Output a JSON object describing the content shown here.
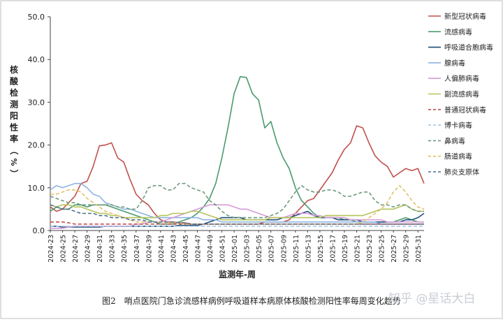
{
  "caption": "图2　哨点医院门急诊流感样病例呼吸道样本病原体核酸检测阳性率每周变化趋势",
  "watermark": "知乎 @星话大白",
  "chart_data": {
    "type": "line",
    "xlabel": "监测年-周",
    "ylabel": "核酸检测阳性率（%）",
    "ylim": [
      0,
      50
    ],
    "yticks": [
      "0.0",
      "10.0",
      "20.0",
      "30.0",
      "40.0",
      "50.0"
    ],
    "ytick_values": [
      0,
      10,
      20,
      30,
      40,
      50
    ],
    "grid": false,
    "legend_position": "right",
    "categories": [
      "2024-23",
      "2024-24",
      "2024-25",
      "2024-26",
      "2024-27",
      "2024-28",
      "2024-29",
      "2024-30",
      "2024-31",
      "2024-32",
      "2024-33",
      "2024-34",
      "2024-35",
      "2024-36",
      "2024-37",
      "2024-38",
      "2024-39",
      "2024-40",
      "2024-41",
      "2024-42",
      "2024-43",
      "2024-44",
      "2024-45",
      "2024-46",
      "2024-47",
      "2024-48",
      "2024-49",
      "2024-50",
      "2024-51",
      "2024-52",
      "2025-01",
      "2025-02",
      "2025-03",
      "2025-04",
      "2025-05",
      "2025-06",
      "2025-07",
      "2025-08",
      "2025-09",
      "2025-10",
      "2025-11",
      "2025-12",
      "2025-13",
      "2025-14",
      "2025-15",
      "2025-16",
      "2025-17",
      "2025-18",
      "2025-19",
      "2025-20",
      "2025-21",
      "2025-22",
      "2025-23",
      "2025-24",
      "2025-25",
      "2025-26",
      "2025-27",
      "2025-28",
      "2025-29",
      "2025-30",
      "2025-31",
      "2025-32"
    ],
    "tick_labels": [
      "2024-23",
      "2024-25",
      "2024-27",
      "2024-29",
      "2024-31",
      "2024-33",
      "2024-35",
      "2024-37",
      "2024-39",
      "2024-41",
      "2024-43",
      "2024-45",
      "2024-47",
      "2024-49",
      "2024-51",
      "2025-01",
      "2025-03",
      "2025-05",
      "2025-07",
      "2025-09",
      "2025-11",
      "2025-13",
      "2025-15",
      "2025-17",
      "2025-19",
      "2025-21",
      "2025-23",
      "2025-25",
      "2025-27",
      "2025-29",
      "2025-31"
    ],
    "series": [
      {
        "name": "新型冠状病毒",
        "color": "#c0504d",
        "dash": false,
        "values": [
          5.5,
          4.5,
          5,
          6.5,
          8,
          11,
          11.5,
          15,
          19.8,
          20,
          20.5,
          17,
          16,
          12,
          8.5,
          7,
          6,
          4,
          2.5,
          2,
          2,
          1.8,
          1.8,
          1.5,
          1.5,
          1.5,
          1.5,
          1.5,
          1.5,
          1.5,
          1.5,
          1.5,
          1.5,
          1.5,
          1.5,
          2,
          2,
          2,
          2,
          2.5,
          4,
          5.5,
          7,
          7.5,
          9.5,
          11.5,
          13.5,
          16.5,
          19,
          20.5,
          24.5,
          24,
          20.5,
          17.5,
          16,
          15,
          12.5,
          13.5,
          14.5,
          14,
          14.5,
          11
        ]
      },
      {
        "name": "流感病毒",
        "color": "#4a9a6e",
        "dash": false,
        "values": [
          4.5,
          5.5,
          5,
          5,
          6,
          6,
          5.5,
          6,
          6,
          6,
          5.5,
          5,
          4.5,
          4,
          3.5,
          3,
          2.5,
          2,
          1.5,
          1.5,
          1.5,
          2,
          2.5,
          3,
          4,
          5.5,
          7.5,
          11,
          17,
          24,
          32,
          36,
          35.8,
          32,
          30.5,
          24,
          25.5,
          20.5,
          17,
          14.5,
          10,
          7,
          5.5,
          4,
          3,
          3,
          3,
          3,
          2.5,
          2.5,
          2,
          2,
          2,
          2,
          2,
          2,
          2,
          2.5,
          3,
          2.5,
          2,
          2
        ]
      },
      {
        "name": "呼吸道合胞病毒",
        "color": "#1f4e79",
        "dash": false,
        "values": [
          1,
          1,
          0.8,
          0.8,
          0.8,
          0.8,
          0.8,
          0.8,
          0.8,
          1,
          1,
          1,
          1,
          1,
          1,
          1,
          1,
          1,
          1,
          1,
          1,
          1.2,
          1.2,
          1.2,
          1.2,
          1.5,
          2,
          2.5,
          3,
          3,
          3,
          3,
          2.5,
          2.5,
          2.5,
          2.5,
          2.5,
          2.5,
          3,
          3,
          3.5,
          4,
          4.5,
          3.5,
          3,
          3,
          3,
          2.5,
          2.5,
          2.5,
          2.5,
          2,
          2,
          2,
          2,
          2,
          2,
          2,
          2.5,
          2.5,
          3,
          4
        ]
      },
      {
        "name": "腺病毒",
        "color": "#8db3e2",
        "dash": false,
        "values": [
          9.5,
          10.5,
          10,
          10.5,
          11,
          11,
          10,
          8.5,
          8,
          6.5,
          6,
          5.5,
          5,
          5,
          4.5,
          4,
          3.5,
          3,
          3,
          3,
          3,
          3,
          3,
          3,
          3,
          2.5,
          2.5,
          2.5,
          2,
          2,
          2,
          2,
          2,
          2,
          2,
          2,
          2,
          2,
          2,
          2,
          2,
          2,
          2,
          2,
          2,
          2,
          2,
          2,
          2,
          2,
          2,
          2,
          2,
          2,
          1.5,
          1.5,
          1.5,
          1.5,
          1.5,
          1.5,
          1.5,
          1.5
        ]
      },
      {
        "name": "人偏肺病毒",
        "color": "#d79ad8",
        "dash": false,
        "values": [
          0.5,
          0.5,
          0.5,
          0.8,
          1,
          1,
          1,
          1,
          1,
          1,
          1,
          1,
          1,
          1,
          1.5,
          1.5,
          2,
          2,
          2,
          2.5,
          3,
          3.5,
          4,
          4.5,
          5,
          5.5,
          6,
          6,
          6,
          6,
          5.5,
          5,
          5,
          4.5,
          4,
          3.5,
          3,
          3,
          3,
          3.5,
          4,
          4,
          4,
          3.5,
          3.5,
          3,
          3,
          3,
          3,
          2.5,
          2.5,
          2.5,
          2.5,
          2.5,
          2.5,
          2,
          2,
          2,
          2,
          2,
          2,
          2
        ]
      },
      {
        "name": "副流感病毒",
        "color": "#b5c35a",
        "dash": false,
        "values": [
          6,
          5.5,
          6,
          6,
          5.5,
          5.5,
          5,
          4.5,
          4,
          4,
          3.5,
          3.5,
          3,
          3,
          3,
          3,
          3,
          3,
          3.5,
          3.5,
          4,
          4,
          4,
          4.5,
          4.5,
          4,
          3.5,
          3,
          2.5,
          2.5,
          2.5,
          2.5,
          2.5,
          2.5,
          2.5,
          2.5,
          3,
          3,
          3,
          3,
          3,
          3,
          3,
          3,
          3,
          3.5,
          3.5,
          3.5,
          3.5,
          3.5,
          3.5,
          3.5,
          4,
          4.5,
          5,
          5,
          5,
          5.5,
          6,
          5,
          4.5,
          4.5
        ]
      },
      {
        "name": "普通冠状病毒",
        "color": "#c0504d",
        "dash": true,
        "values": [
          2,
          2,
          2,
          1.8,
          1.5,
          1.5,
          1.5,
          1.5,
          1.5,
          1.5,
          1.5,
          1.5,
          1.5,
          1.5,
          1.5,
          1.5,
          1.5,
          1.5,
          1.5,
          1.5,
          1.5,
          1.5,
          1.5,
          1.5,
          1.5,
          1.5,
          1.5,
          1.5,
          1.5,
          1.5,
          1.5,
          1.5,
          1.5,
          1.5,
          1.5,
          1.5,
          1.5,
          1.5,
          1.5,
          1.5,
          1.5,
          1.5,
          1.5,
          1.5,
          1.5,
          1.5,
          1.5,
          1.5,
          1.5,
          1.5,
          1.5,
          1.5,
          1.5,
          1.5,
          1.5,
          1.5,
          1.5,
          1.5,
          1.5,
          1.5,
          1.5,
          1.5
        ]
      },
      {
        "name": "博卡病毒",
        "color": "#a6c8e6",
        "dash": true,
        "values": [
          1,
          1,
          1,
          1,
          1,
          1,
          1,
          1,
          1,
          1,
          1,
          1,
          1,
          1,
          1,
          1,
          1,
          1,
          1,
          1,
          1,
          1,
          1,
          1,
          1,
          1,
          1,
          1,
          1,
          1,
          1,
          1,
          1,
          1,
          1,
          1,
          1,
          1,
          1,
          1,
          1,
          1,
          1,
          1,
          1,
          1,
          1,
          1,
          1,
          1,
          1,
          1,
          1,
          1,
          1,
          1,
          1,
          1,
          1,
          1,
          1,
          1
        ]
      },
      {
        "name": "鼻病毒",
        "color": "#6e9a7b",
        "dash": true,
        "values": [
          8,
          7.5,
          7,
          6.5,
          6.5,
          6,
          6,
          6,
          6,
          6,
          6,
          5.5,
          5.5,
          5,
          5,
          7,
          10,
          10.5,
          10.5,
          9.5,
          9.5,
          11,
          11,
          10,
          9.5,
          9,
          7,
          6,
          4.5,
          3.5,
          3,
          3,
          3,
          3,
          3,
          3,
          3.5,
          4,
          5,
          7,
          9,
          10.5,
          9.5,
          9,
          9,
          9.5,
          9.5,
          9,
          8,
          8,
          8.5,
          9,
          9,
          7,
          6,
          6,
          5.5,
          6,
          6,
          5,
          4.5,
          4.5
        ]
      },
      {
        "name": "肠道病毒",
        "color": "#e2c066",
        "dash": true,
        "values": [
          8.5,
          8.5,
          9,
          9.5,
          9.5,
          9,
          7.5,
          6.5,
          5.5,
          4.5,
          4,
          3.5,
          3,
          2.5,
          2,
          2,
          2,
          2,
          2,
          1.8,
          1.8,
          1.8,
          1.5,
          1.5,
          1.5,
          1.5,
          1.5,
          1.5,
          1.5,
          1.5,
          1.5,
          1.5,
          1.5,
          1.5,
          1.5,
          1.5,
          1.5,
          1.5,
          1.5,
          1.5,
          1.5,
          1.5,
          1.5,
          1.5,
          1.5,
          1.5,
          1.5,
          1.5,
          1.5,
          1.5,
          1.5,
          2,
          3,
          4,
          5,
          6.5,
          9,
          10.5,
          9,
          7,
          5.5,
          5
        ]
      },
      {
        "name": "肺炎支原体",
        "color": "#4f6f8f",
        "dash": true,
        "values": [
          6,
          5.5,
          5,
          5,
          4.5,
          4,
          4,
          4,
          3.5,
          3.5,
          3,
          3,
          3,
          2.5,
          2.5,
          2.5,
          2,
          2,
          2,
          2,
          2,
          1.8,
          1.8,
          1.5,
          1.5,
          1.5,
          1.5,
          1.5,
          1.5,
          1.5,
          1.5,
          1.5,
          1.5,
          1.5,
          1.5,
          1.5,
          1.5,
          1.5,
          1.5,
          1.5,
          1.5,
          1.5,
          1.5,
          1.5,
          1.5,
          1.5,
          1.5,
          1.5,
          1.5,
          1.5,
          1.5,
          1.5,
          1.5,
          1.5,
          1.5,
          1.5,
          1.5,
          1.5,
          1.5,
          1.5,
          1.5,
          1.5
        ]
      }
    ]
  }
}
